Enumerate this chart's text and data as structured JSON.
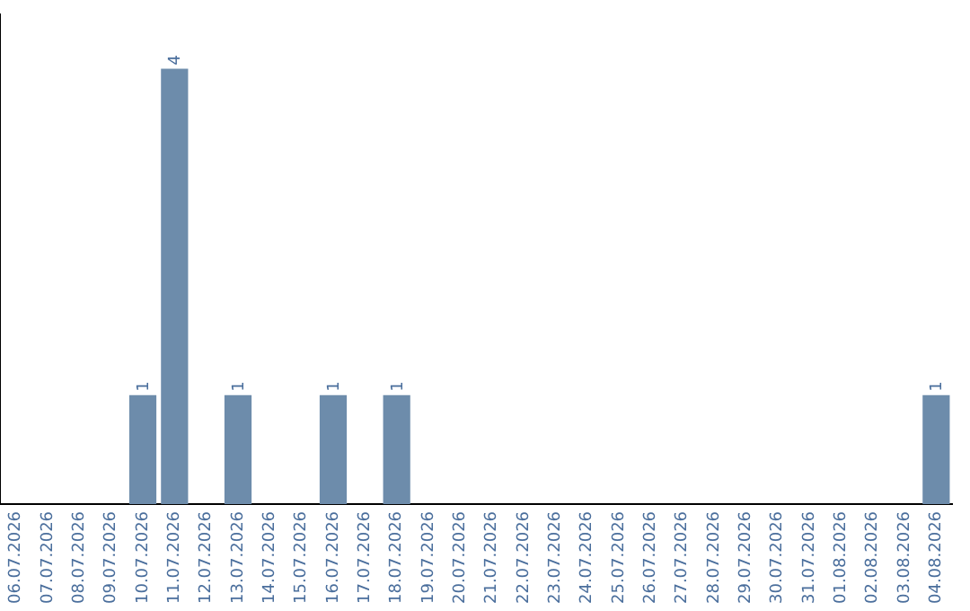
{
  "chart_data": {
    "type": "bar",
    "categories": [
      "06.07.2026",
      "07.07.2026",
      "08.07.2026",
      "09.07.2026",
      "10.07.2026",
      "11.07.2026",
      "12.07.2026",
      "13.07.2026",
      "14.07.2026",
      "15.07.2026",
      "16.07.2026",
      "17.07.2026",
      "18.07.2026",
      "19.07.2026",
      "20.07.2026",
      "21.07.2026",
      "22.07.2026",
      "23.07.2026",
      "24.07.2026",
      "25.07.2026",
      "26.07.2026",
      "27.07.2026",
      "28.07.2026",
      "29.07.2026",
      "30.07.2026",
      "31.07.2026",
      "01.08.2026",
      "02.08.2026",
      "03.08.2026",
      "04.08.2026"
    ],
    "values": [
      null,
      null,
      null,
      null,
      1,
      4,
      null,
      1,
      null,
      null,
      1,
      null,
      1,
      null,
      null,
      null,
      null,
      null,
      null,
      null,
      null,
      null,
      null,
      null,
      null,
      null,
      null,
      null,
      null,
      1
    ],
    "color": "#6d8cab",
    "data_labels": true,
    "grid": false,
    "legend": false,
    "tick_labels": "x"
  }
}
